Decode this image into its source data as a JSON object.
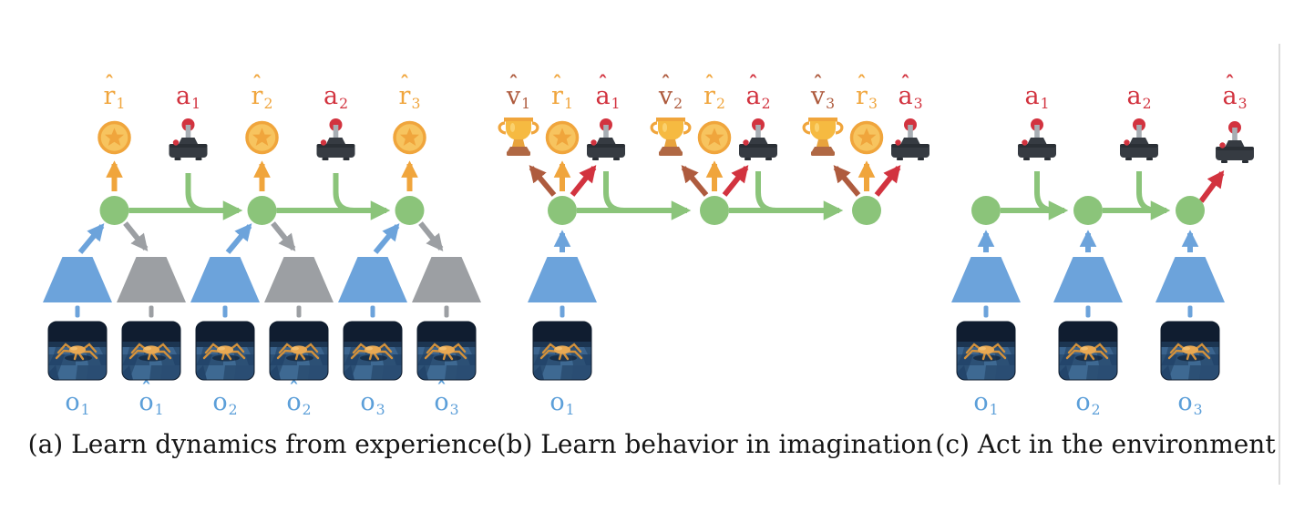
{
  "captions": {
    "a": "(a) Learn dynamics from experience",
    "b": "(b) Learn behavior in imagination",
    "c": "(c) Act in the environment"
  },
  "panels": {
    "a": {
      "top_labels": [
        {
          "base": "r",
          "hat": true,
          "sub": "1",
          "color": "orange"
        },
        {
          "base": "a",
          "hat": false,
          "sub": "1",
          "color": "red"
        },
        {
          "base": "r",
          "hat": true,
          "sub": "2",
          "color": "orange"
        },
        {
          "base": "a",
          "hat": false,
          "sub": "2",
          "color": "red"
        },
        {
          "base": "r",
          "hat": true,
          "sub": "3",
          "color": "orange"
        }
      ],
      "bottom_labels": [
        {
          "base": "o",
          "hat": false,
          "sub": "1",
          "color": "obs-label-blue"
        },
        {
          "base": "o",
          "hat": true,
          "sub": "1",
          "color": "obs-label-blue"
        },
        {
          "base": "o",
          "hat": false,
          "sub": "2",
          "color": "obs-label-blue"
        },
        {
          "base": "o",
          "hat": true,
          "sub": "2",
          "color": "obs-label-blue"
        },
        {
          "base": "o",
          "hat": false,
          "sub": "3",
          "color": "obs-label-blue"
        },
        {
          "base": "o",
          "hat": true,
          "sub": "3",
          "color": "obs-label-blue"
        }
      ]
    },
    "b": {
      "top_labels": [
        {
          "base": "v",
          "hat": true,
          "sub": "1",
          "color": "brown"
        },
        {
          "base": "r",
          "hat": true,
          "sub": "1",
          "color": "orange"
        },
        {
          "base": "a",
          "hat": true,
          "sub": "1",
          "color": "red"
        },
        {
          "base": "v",
          "hat": true,
          "sub": "2",
          "color": "brown"
        },
        {
          "base": "r",
          "hat": true,
          "sub": "2",
          "color": "orange"
        },
        {
          "base": "a",
          "hat": true,
          "sub": "2",
          "color": "red"
        },
        {
          "base": "v",
          "hat": true,
          "sub": "3",
          "color": "brown"
        },
        {
          "base": "r",
          "hat": true,
          "sub": "3",
          "color": "orange"
        },
        {
          "base": "a",
          "hat": true,
          "sub": "3",
          "color": "red"
        }
      ],
      "bottom_labels": [
        {
          "base": "o",
          "hat": false,
          "sub": "1",
          "color": "obs-label-blue"
        }
      ]
    },
    "c": {
      "top_labels": [
        {
          "base": "a",
          "hat": false,
          "sub": "1",
          "color": "red"
        },
        {
          "base": "a",
          "hat": false,
          "sub": "2",
          "color": "red"
        },
        {
          "base": "a",
          "hat": true,
          "sub": "3",
          "color": "red"
        }
      ],
      "bottom_labels": [
        {
          "base": "o",
          "hat": false,
          "sub": "1",
          "color": "obs-label-blue"
        },
        {
          "base": "o",
          "hat": false,
          "sub": "2",
          "color": "obs-label-blue"
        },
        {
          "base": "o",
          "hat": false,
          "sub": "3",
          "color": "obs-label-blue"
        }
      ]
    }
  },
  "colors": {
    "green": "#8BC47A",
    "blue": "#6CA3DB",
    "gray": "#9C9FA3",
    "orange": "#F0A53C",
    "red": "#D2333F",
    "brown": "#AE5B3E",
    "coin_fill": "#F7C45F",
    "trophy_gold": "#F6BA41",
    "trophy_base": "#B06844",
    "joystick_dark": "#363B42",
    "joystick_stick": "#A8AEB4",
    "obs_label_blue": "#5C9FD9",
    "caption_text": "#161616",
    "page_edge": "#DDDDDD"
  },
  "glyphs": {
    "hat": "ˆ"
  },
  "icons": {
    "reward": "coin-star-icon",
    "value": "trophy-icon",
    "action": "joystick-icon",
    "state": "latent-state-node",
    "encoder": "encoder-trapezoid-icon",
    "decoder": "decoder-trapezoid-icon",
    "observation": "observation-thumbnail"
  }
}
